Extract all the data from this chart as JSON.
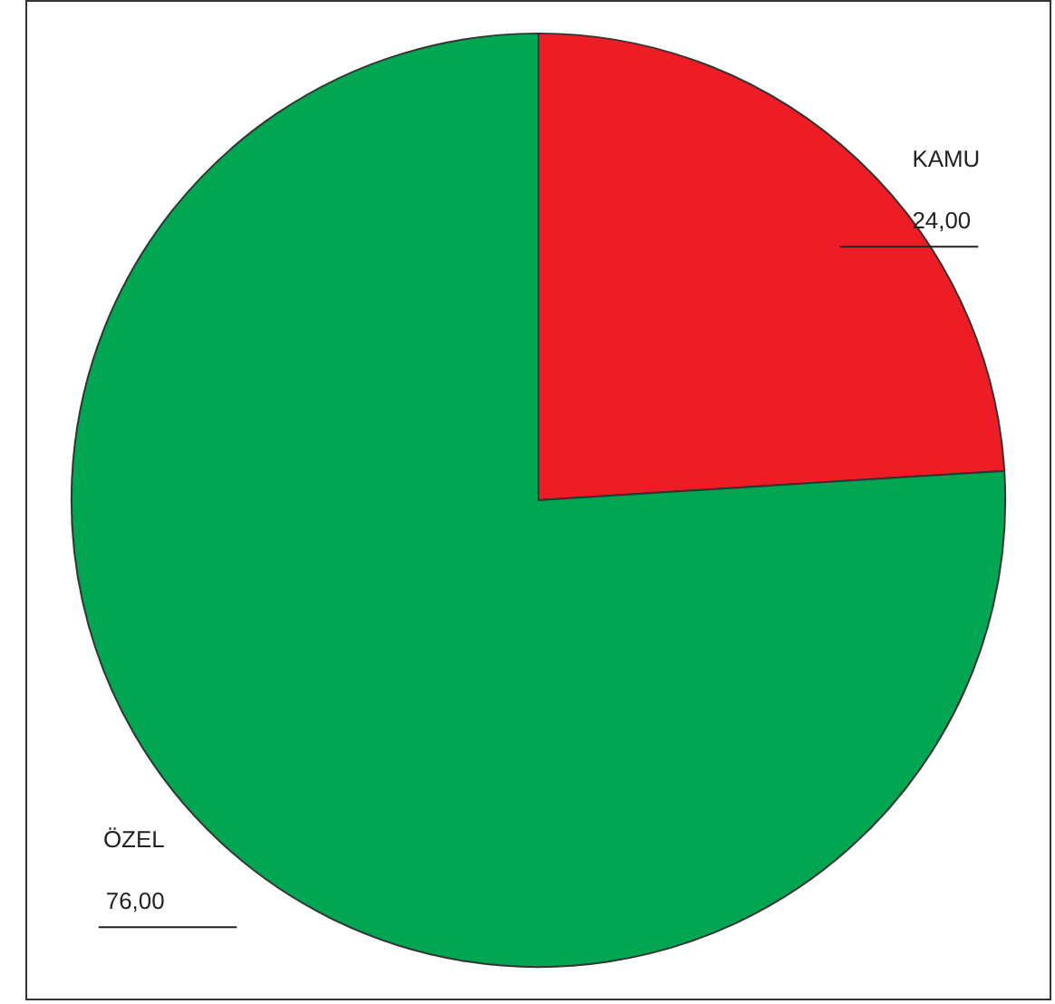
{
  "chart_data": {
    "type": "pie",
    "categories": [
      "KAMU",
      "ÖZEL"
    ],
    "values": [
      24,
      76
    ],
    "value_labels": [
      "24,00",
      "76,00"
    ],
    "colors": [
      "#ee1c24",
      "#00a651"
    ],
    "legend": false
  }
}
